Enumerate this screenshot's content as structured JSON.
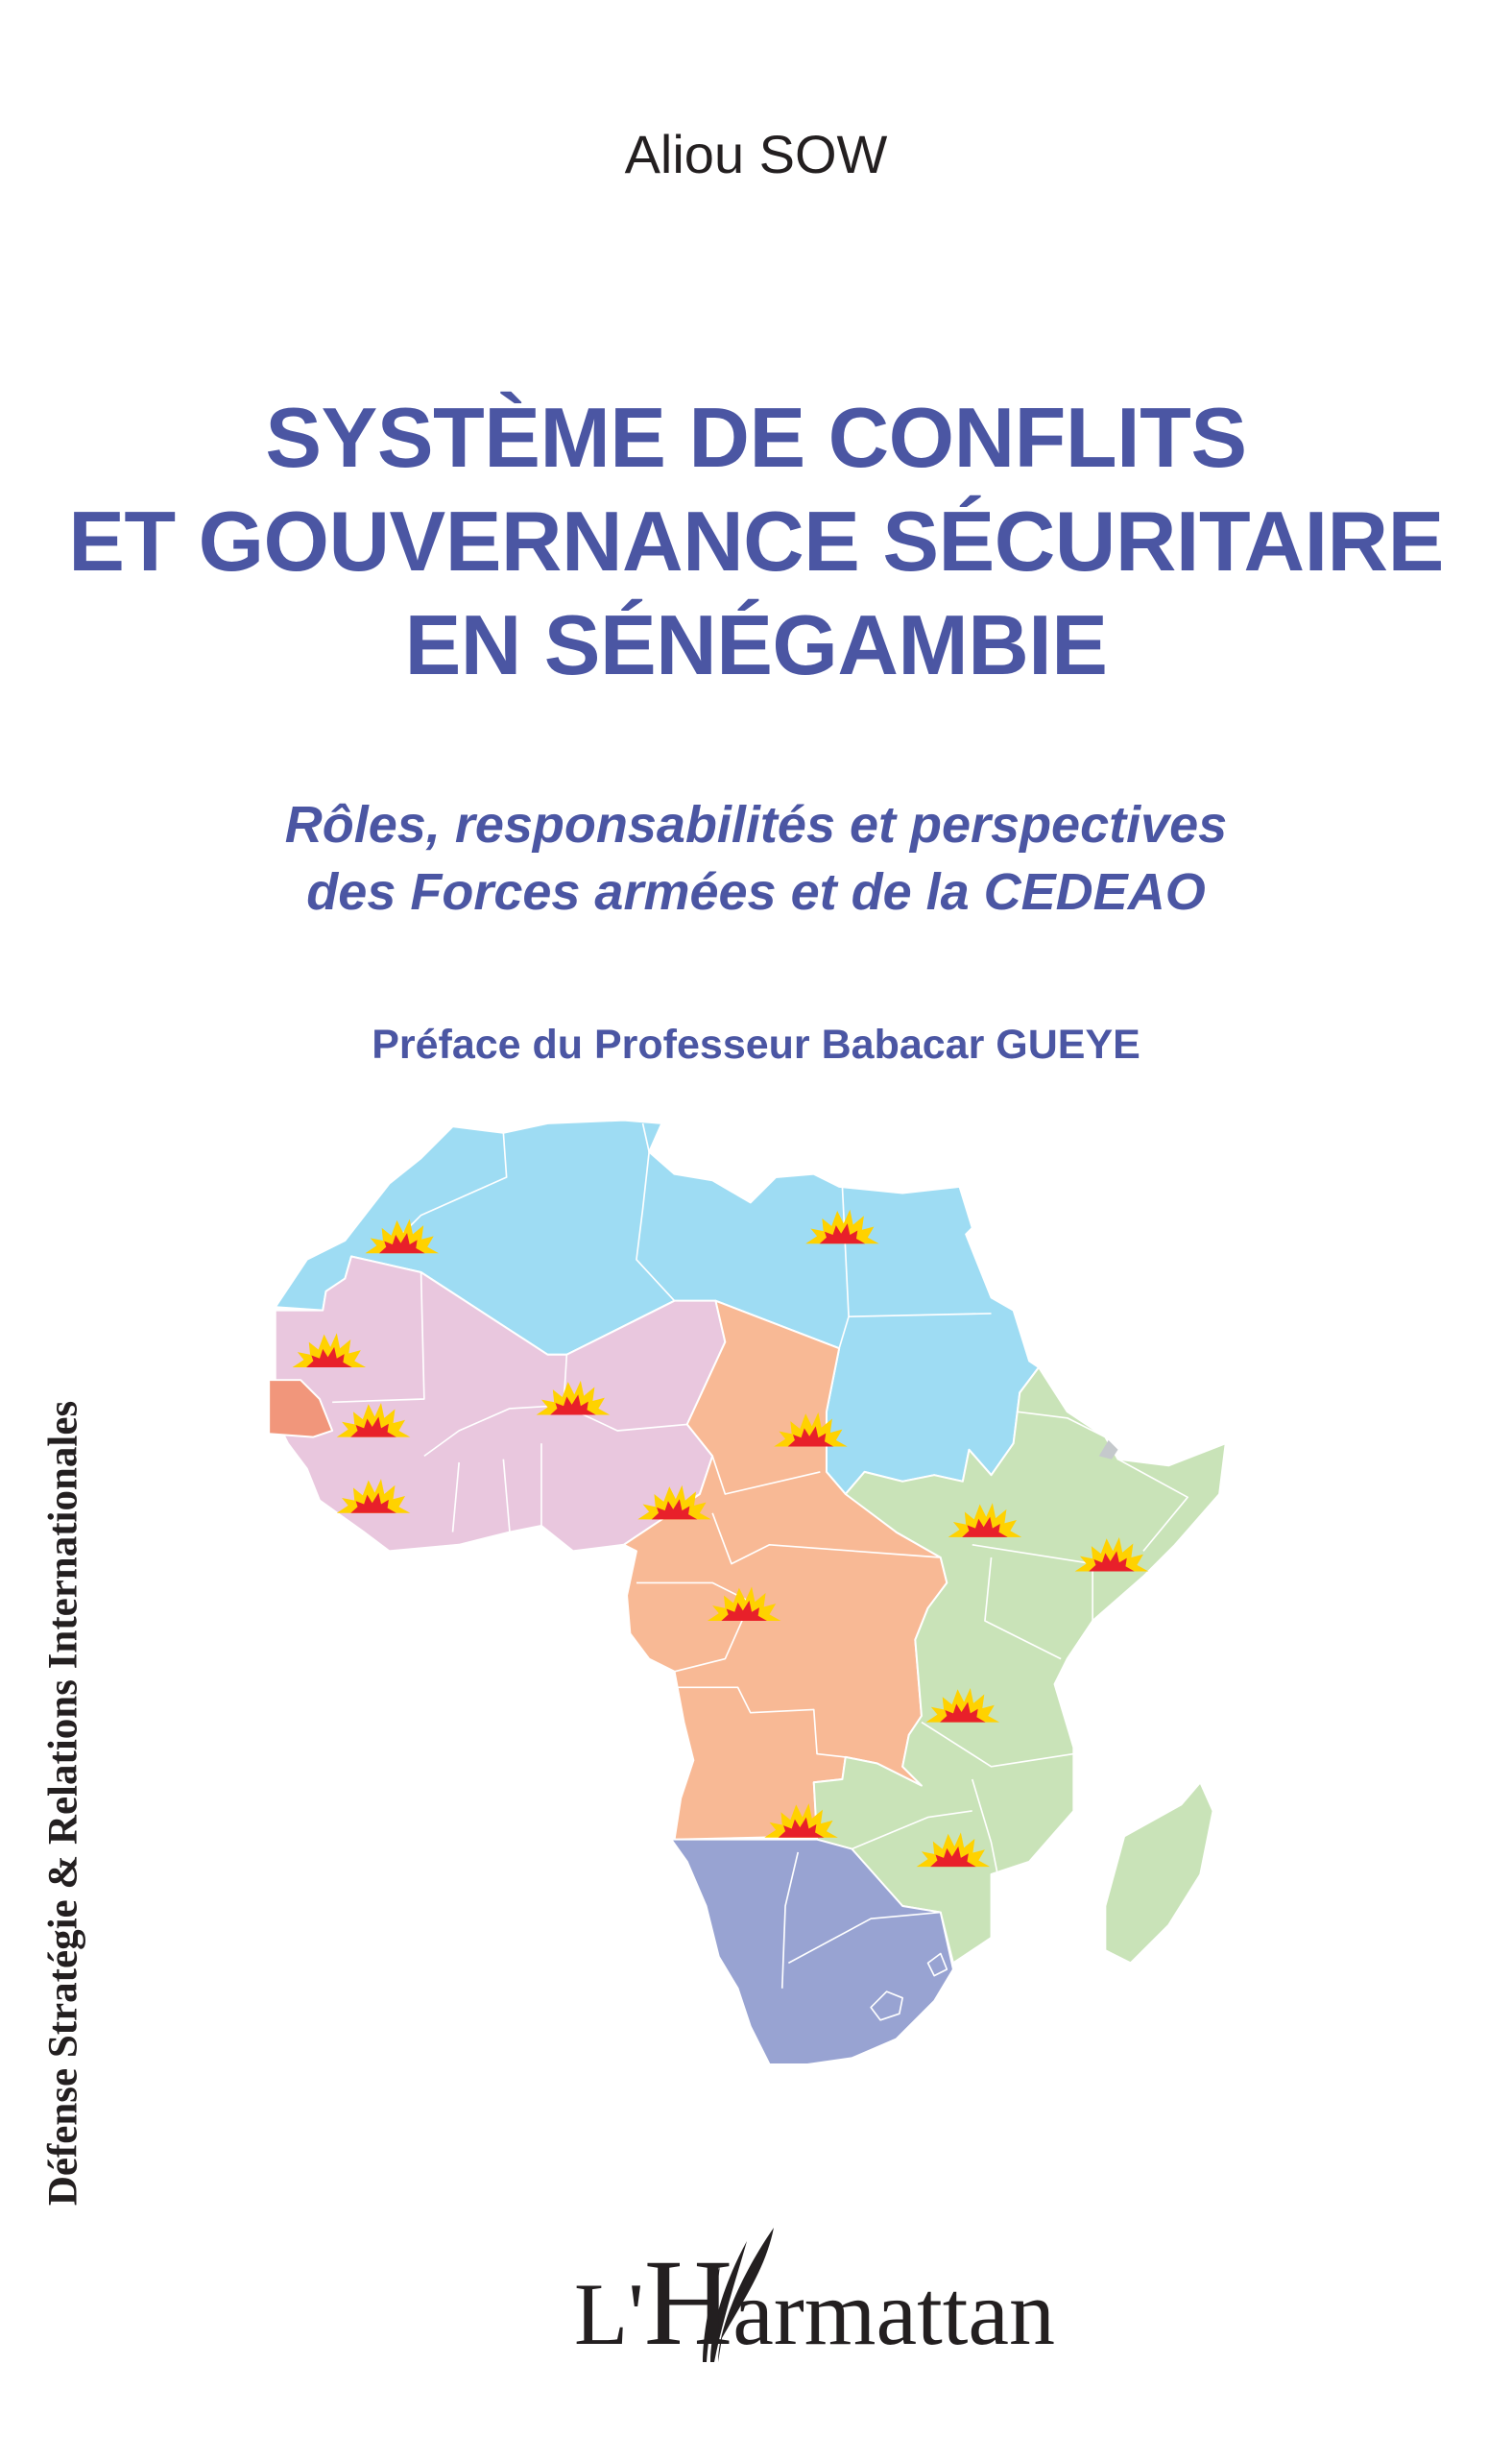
{
  "cover": {
    "author": "Aliou SOW",
    "title_lines": [
      "SYSTÈME DE CONFLITS",
      "ET GOUVERNANCE SÉCURITAIRE",
      "EN SÉNÉGAMBIE"
    ],
    "subtitle_lines": [
      "Rôles, responsabilités et perspectives",
      "des Forces armées et de la CEDEAO"
    ],
    "preface": "Préface du Professeur Babacar GUEYE",
    "series": "Défense Stratégie & Relations Internationales"
  },
  "publisher": {
    "logo": {
      "prefix": "L'",
      "initial": "H",
      "rest": "armattan"
    }
  },
  "map": {
    "description_icon": "africa-regional-map",
    "marker_icon": "explosion-icon",
    "colors": {
      "north": "#9edcf3",
      "west": "#e9c7de",
      "senegal": "#f1967b",
      "central": "#f8b995",
      "east": "#c9e3b8",
      "south": "#98a3d2",
      "marker_outer": "#ffd200",
      "marker_inner": "#e8202a"
    }
  },
  "colors": {
    "title": "#4b56a3",
    "text": "#231f20",
    "background": "#ffffff"
  }
}
